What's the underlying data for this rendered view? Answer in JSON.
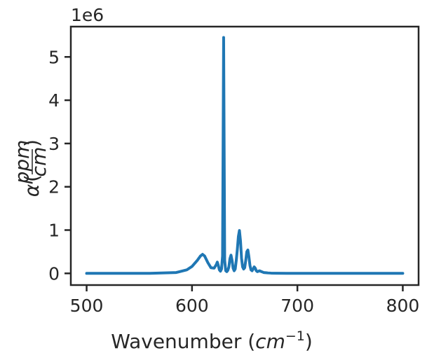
{
  "chart_data": {
    "type": "line",
    "title": "",
    "xlabel": "Wavenumber",
    "xlabel_unit_base": "cm",
    "xlabel_unit_exp": "−1",
    "ylabel_symbol": "α",
    "ylabel_num": "ppm",
    "ylabel_den": "cm",
    "y_offset_label": "1e6",
    "xlim": [
      485,
      815
    ],
    "ylim": [
      -0.27,
      5.7
    ],
    "x_ticks": [
      500,
      600,
      700,
      800
    ],
    "x_tick_labels": [
      "500",
      "600",
      "700",
      "800"
    ],
    "y_ticks": [
      0,
      1,
      2,
      3,
      4,
      5
    ],
    "y_tick_labels": [
      "0",
      "1",
      "2",
      "3",
      "4",
      "5"
    ],
    "grid": false,
    "legend": false,
    "series": [
      {
        "color": "#1f77b4",
        "x": [
          500,
          560,
          585,
          595,
          600,
          605,
          608,
          610,
          612,
          615,
          618,
          621,
          623,
          624,
          625,
          626,
          627,
          628,
          629,
          630,
          631,
          632,
          633,
          634,
          635,
          636,
          637,
          638,
          639,
          640,
          641,
          642,
          643,
          644,
          645,
          646,
          647,
          648,
          649,
          650,
          651,
          652,
          653,
          654,
          655,
          656,
          657,
          658,
          659,
          660,
          661,
          662,
          663,
          664,
          665,
          666,
          667,
          668,
          670,
          672,
          675,
          680,
          690,
          700,
          750,
          800
        ],
        "y": [
          0,
          0.002,
          0.02,
          0.08,
          0.16,
          0.3,
          0.4,
          0.44,
          0.4,
          0.25,
          0.13,
          0.12,
          0.2,
          0.26,
          0.18,
          0.08,
          0.05,
          0.1,
          0.4,
          5.45,
          0.3,
          0.06,
          0.04,
          0.07,
          0.15,
          0.34,
          0.42,
          0.3,
          0.12,
          0.06,
          0.1,
          0.3,
          0.55,
          0.85,
          0.99,
          0.75,
          0.35,
          0.15,
          0.1,
          0.13,
          0.3,
          0.5,
          0.54,
          0.38,
          0.18,
          0.08,
          0.06,
          0.1,
          0.15,
          0.12,
          0.06,
          0.04,
          0.05,
          0.06,
          0.05,
          0.04,
          0.03,
          0.02,
          0.015,
          0.01,
          0.006,
          0.003,
          0.001,
          0,
          0,
          0
        ]
      }
    ]
  }
}
